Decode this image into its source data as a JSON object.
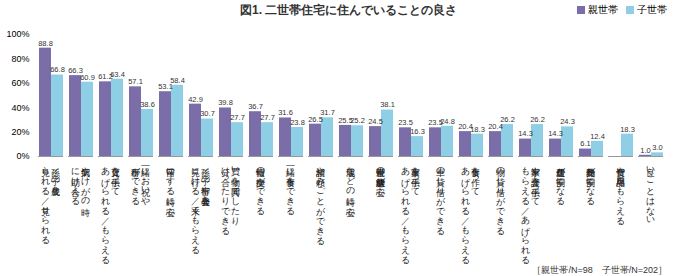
{
  "chart_data": {
    "type": "bar",
    "title": "図1. 二世帯住宅に住んでいることの良さ",
    "note": "［親世帯/N=98　子世帯/N=202］",
    "categories": [
      "孫／子の成長を\n見られる／見せられる",
      "病気やけがの時\nに助け合える",
      "育児を手伝って\nあげられる／もらえる",
      "一緒にお祝いや\n行事ができる",
      "留守にする時に安心",
      "孫／子の行事や発表会を\n見に行ける／来てもらえる",
      "買い物を共同でしたり、\n分け合ったりできる",
      "情報の交換ができる",
      "一緒に食事をできる",
      "相談や頼みごとができる",
      "地震などの時に安心",
      "親世帯の健康状態が安心",
      "家事を手伝って\nあげられる／もらえる",
      "車の貸し借りができる",
      "食事を作って\nあげられる／もらえる",
      "物の貸し借りができる",
      "家事や介護を手伝って\nもらえる／あげられる",
      "住居費が割安になる",
      "光熱費が割安になる",
      "食費や日用品をもらえる",
      "良いことはない"
    ],
    "series": [
      {
        "name": "親世帯",
        "color": "#7b6ea8",
        "values": [
          88.8,
          66.3,
          61.2,
          57.1,
          53.1,
          42.9,
          39.8,
          36.7,
          31.6,
          26.5,
          25.5,
          24.5,
          23.5,
          23.5,
          20.4,
          20.4,
          14.3,
          14.3,
          6.1,
          null,
          1.0
        ],
        "value_labels": [
          "88.8",
          "66.3",
          "61.2",
          "57.1",
          "53.1",
          "42.9",
          "39.8",
          "36.7",
          "31.6",
          "26.5",
          "25.5",
          "24.5",
          "23.5",
          "23.5",
          "20.4",
          "20.4",
          "14.3",
          "14.3",
          "6.1",
          null,
          "1.0"
        ]
      },
      {
        "name": "子世帯",
        "color": "#8ecfe6",
        "values": [
          66.8,
          60.9,
          63.4,
          38.6,
          58.4,
          30.7,
          27.7,
          27.7,
          23.8,
          31.7,
          25.2,
          38.1,
          16.3,
          24.8,
          18.3,
          26.2,
          26.2,
          24.3,
          12.4,
          18.3,
          3.0
        ],
        "value_labels": [
          "66.8",
          "60.9",
          "63.4",
          "38.6",
          "58.4",
          "30.7",
          "27.7",
          "27.7",
          "23.8",
          "31.7",
          "25.2",
          "38.1",
          "16.3",
          "24.8",
          "18.3",
          "26.2",
          "26.2",
          "24.3",
          "12.4",
          "18.3",
          "3.0"
        ]
      }
    ],
    "ylim": [
      0,
      100
    ],
    "yticks": [
      {
        "value": 0,
        "label": "0%"
      },
      {
        "value": 20,
        "label": "20%"
      },
      {
        "value": 40,
        "label": "40%"
      },
      {
        "value": 60,
        "label": "60%"
      },
      {
        "value": 80,
        "label": "80%"
      },
      {
        "value": 100,
        "label": "100%"
      }
    ],
    "grid": false,
    "data_labels": true,
    "legend": "top-right"
  }
}
